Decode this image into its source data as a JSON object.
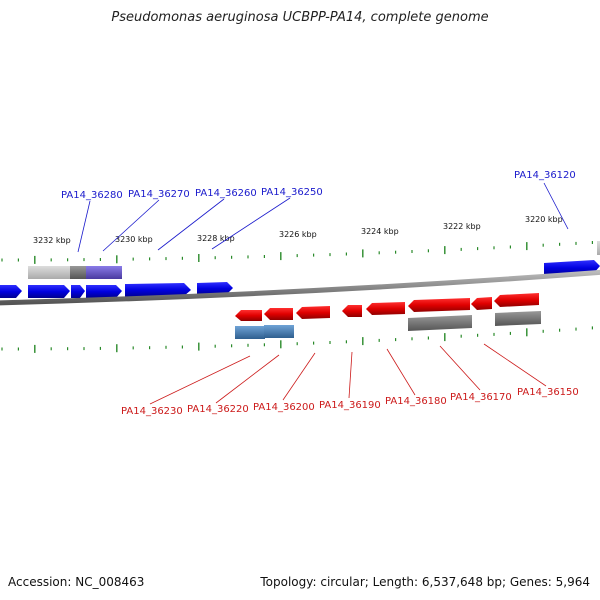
{
  "title": "Pseudomonas aeruginosa UCBPP-PA14, complete genome",
  "footer": {
    "accession": "Accession: NC_008463",
    "topology": "Topology: circular; Length: 6,537,648 bp; Genes: 5,964"
  },
  "scale_labels": [
    "3232 kbp",
    "3230 kbp",
    "3228 kbp",
    "3226 kbp",
    "3224 kbp",
    "3222 kbp",
    "3220 kbp"
  ],
  "top_genes": [
    "PA14_36280",
    "PA14_36270",
    "PA14_36260",
    "PA14_36250",
    "PA14_36120"
  ],
  "bottom_genes": [
    "PA14_36230",
    "PA14_36220",
    "PA14_36200",
    "PA14_36190",
    "PA14_36180",
    "PA14_36170",
    "PA14_36150"
  ],
  "colors": {
    "forward_gene": "#1010e0",
    "reverse_gene": "#e01010",
    "backbone": "#888888",
    "tick": "#2a8a2a",
    "feature_gray": "#777777",
    "feature_steel": "#4a7fb0",
    "feature_purple": "#6a5acd"
  }
}
